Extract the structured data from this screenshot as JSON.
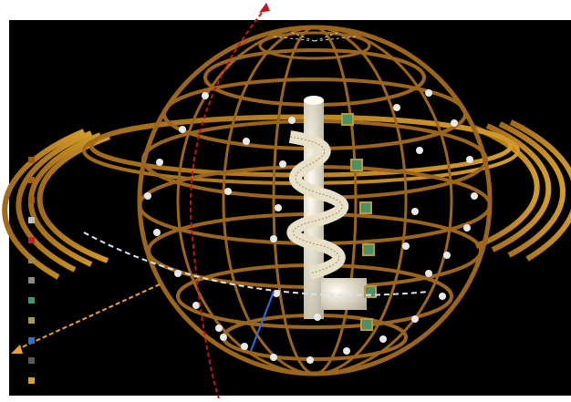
{
  "scene": {
    "background": "#000000",
    "frame_background": "#ffffff",
    "frame_color": "#b8860b",
    "structure_color": "#8b5a1b",
    "tower_color": "#f0ead6",
    "node_color": "#e8e8e8",
    "panel_color": "#4f8f68",
    "axes": {
      "red_axis_color": "#c0161e",
      "orange_axis_color": "#f0a030",
      "white_axis_color": "#d8e2f0",
      "blue_axis_color": "#2c6fe0"
    }
  },
  "legend": {
    "swatch_colors": [
      "#9a5a10",
      "#a0601a",
      "#a85c08",
      "#c0c0c0",
      "#c8202a",
      "#a08c3c",
      "#8a8a80",
      "#3a9a6a",
      "#a0a040",
      "#3070c8",
      "#5a5a5a",
      "#e0a020"
    ]
  }
}
